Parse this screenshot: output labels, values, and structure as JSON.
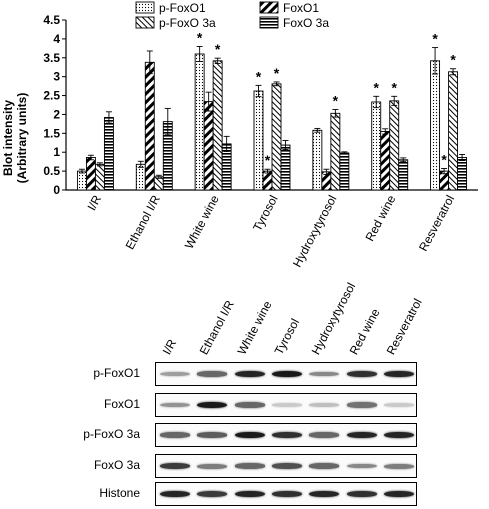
{
  "chart_data": {
    "type": "bar",
    "ylabel_line1": "Blot intensity",
    "ylabel_line2": "(Arbitrary units)",
    "ylim": [
      0,
      4.5
    ],
    "yticks": [
      "0",
      "0.5",
      "1",
      "1.5",
      "2",
      "2.5",
      "3",
      "3.5",
      "4",
      "4.5"
    ],
    "categories": [
      "I/R",
      "Ethanol I/R",
      "White wine",
      "Tyrosol",
      "Hydroxytyrosol",
      "Red wine",
      "Resveratrol"
    ],
    "legend_position": "top",
    "series": [
      {
        "name": "p-FoxO1",
        "pattern": "dots",
        "values": [
          0.5,
          0.68,
          3.6,
          2.62,
          1.58,
          2.33,
          3.42
        ],
        "errors": [
          0.05,
          0.08,
          0.2,
          0.15,
          0.05,
          0.15,
          0.35
        ],
        "star": [
          false,
          false,
          true,
          true,
          false,
          true,
          true
        ]
      },
      {
        "name": "FoxO1",
        "pattern": "diag-back",
        "values": [
          0.86,
          3.38,
          2.34,
          0.5,
          0.48,
          1.55,
          0.5
        ],
        "errors": [
          0.06,
          0.3,
          0.25,
          0.05,
          0.07,
          0.07,
          0.07
        ],
        "star": [
          false,
          false,
          false,
          true,
          false,
          false,
          true
        ]
      },
      {
        "name": "p-FoxO 3a",
        "pattern": "diag-fwd",
        "values": [
          0.68,
          0.35,
          3.42,
          2.81,
          2.03,
          2.36,
          3.13
        ],
        "errors": [
          0.04,
          0.04,
          0.07,
          0.05,
          0.1,
          0.12,
          0.08
        ],
        "star": [
          false,
          false,
          true,
          true,
          true,
          true,
          true
        ]
      },
      {
        "name": "FoxO 3a",
        "pattern": "horiz",
        "values": [
          1.92,
          1.81,
          1.22,
          1.19,
          0.98,
          0.8,
          0.86
        ],
        "errors": [
          0.15,
          0.35,
          0.2,
          0.12,
          0.03,
          0.05,
          0.08
        ],
        "star": [
          false,
          false,
          false,
          false,
          false,
          false,
          false
        ]
      }
    ],
    "star_symbol": "*"
  },
  "blot": {
    "lanes": [
      "I/R",
      "Ethanol I/R",
      "White wine",
      "Tyrosol",
      "Hydroxytyrosol",
      "Red wine",
      "Resveratrol"
    ],
    "rows": [
      {
        "label": "p-FoxO1",
        "intensities": [
          0.35,
          0.6,
          0.9,
          0.95,
          0.45,
          0.85,
          0.9
        ]
      },
      {
        "label": "FoxO1",
        "intensities": [
          0.4,
          0.95,
          0.6,
          0.15,
          0.2,
          0.55,
          0.15
        ]
      },
      {
        "label": "p-FoxO 3a",
        "intensities": [
          0.6,
          0.65,
          0.95,
          0.85,
          0.6,
          0.9,
          0.9
        ]
      },
      {
        "label": "FoxO 3a",
        "intensities": [
          0.8,
          0.5,
          0.6,
          0.7,
          0.6,
          0.45,
          0.5
        ]
      },
      {
        "label": "Histone",
        "intensities": [
          0.9,
          0.8,
          0.9,
          0.85,
          0.9,
          0.85,
          0.9
        ]
      }
    ]
  }
}
